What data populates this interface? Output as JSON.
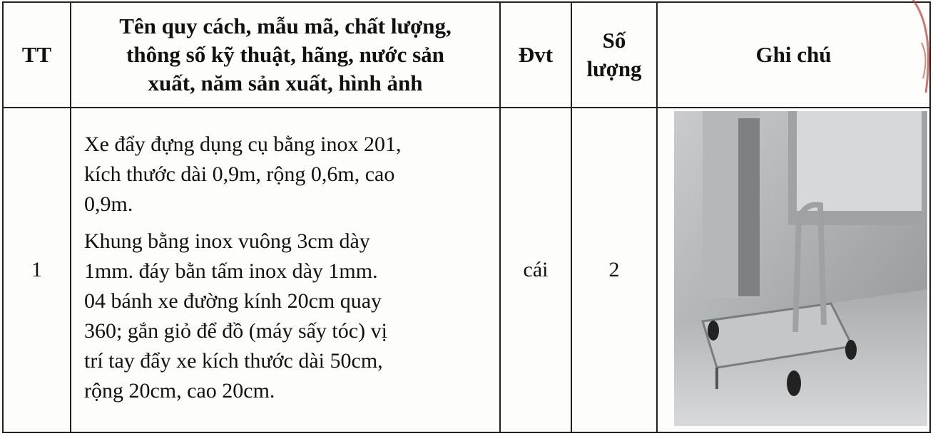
{
  "table": {
    "header": [
      {
        "lines": [
          "TT"
        ]
      },
      {
        "lines": [
          "Tên quy cách, mẫu mã, chất lượng,",
          "thông số kỹ thuật, hãng, nước sản",
          "xuất, năm sản xuất, hình ảnh"
        ]
      },
      {
        "lines": [
          "Đvt"
        ]
      },
      {
        "lines": [
          "Số",
          "lượng"
        ]
      },
      {
        "lines": [
          "Ghi chú"
        ]
      }
    ],
    "rows": [
      {
        "tt": "1",
        "description": [
          [
            "Xe đẩy đựng dụng cụ bằng inox 201,",
            "kích thước dài 0,9m, rộng 0,6m, cao",
            "0,9m."
          ],
          [
            "Khung bằng inox vuông 3cm dày",
            "1mm. đáy bằn tấm inox dày 1mm.",
            "04 bánh xe đường kính 20cm quay",
            "360; gắn giỏ để đồ (máy sấy tóc) vị",
            "trí tay đẩy xe kích thước dài 50cm,",
            "rộng 20cm, cao 20cm."
          ]
        ],
        "unit": "cái",
        "quantity": 2
      }
    ]
  }
}
